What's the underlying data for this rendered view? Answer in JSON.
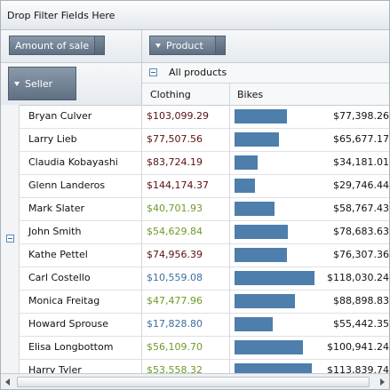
{
  "filter_area": {
    "label": "Drop Filter Fields Here"
  },
  "data_field": {
    "label": "Amount of sale"
  },
  "column_field": {
    "label": "Product"
  },
  "row_field": {
    "label": "Seller"
  },
  "column_header": {
    "group_label": "All products",
    "columns": [
      "Clothing",
      "Bikes"
    ]
  },
  "colors": {
    "bar": "#4e7eab",
    "green_value": "#6f9a2a",
    "blue_value": "#3b6ea0",
    "dark_value": "#5a1010"
  },
  "rows": [
    {
      "seller": "Bryan Culver",
      "clothing": "$103,099.29",
      "clothing_color": "dark",
      "bikes": "$77,398.26",
      "bikes_value": 77398.26
    },
    {
      "seller": "Larry Lieb",
      "clothing": "$77,507.56",
      "clothing_color": "dark",
      "bikes": "$65,677.17",
      "bikes_value": 65677.17
    },
    {
      "seller": "Claudia Kobayashi",
      "clothing": "$83,724.19",
      "clothing_color": "dark",
      "bikes": "$34,181.01",
      "bikes_value": 34181.01
    },
    {
      "seller": "Glenn Landeros",
      "clothing": "$144,174.37",
      "clothing_color": "dark",
      "bikes": "$29,746.44",
      "bikes_value": 29746.44
    },
    {
      "seller": "Mark Slater",
      "clothing": "$40,701.93",
      "clothing_color": "green",
      "bikes": "$58,767.43",
      "bikes_value": 58767.43
    },
    {
      "seller": "John Smith",
      "clothing": "$54,629.84",
      "clothing_color": "green",
      "bikes": "$78,683.63",
      "bikes_value": 78683.63
    },
    {
      "seller": "Kathe Pettel",
      "clothing": "$74,956.39",
      "clothing_color": "dark",
      "bikes": "$76,307.36",
      "bikes_value": 76307.36
    },
    {
      "seller": "Carl Costello",
      "clothing": "$10,559.08",
      "clothing_color": "blue",
      "bikes": "$118,030.24",
      "bikes_value": 118030.24
    },
    {
      "seller": "Monica Freitag",
      "clothing": "$47,477.96",
      "clothing_color": "green",
      "bikes": "$88,898.83",
      "bikes_value": 88898.83
    },
    {
      "seller": "Howard Sprouse",
      "clothing": "$17,828.80",
      "clothing_color": "blue",
      "bikes": "$55,442.35",
      "bikes_value": 55442.35
    },
    {
      "seller": "Elisa Longbottom",
      "clothing": "$56,109.70",
      "clothing_color": "green",
      "bikes": "$100,941.24",
      "bikes_value": 100941.24
    },
    {
      "seller": "Harry Tyler",
      "clothing": "$53,558.32",
      "clothing_color": "green",
      "bikes": "$113,839.74",
      "bikes_value": 113839.74
    }
  ]
}
